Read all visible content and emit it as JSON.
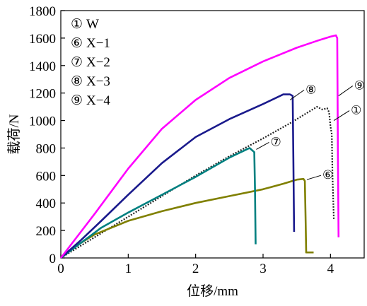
{
  "chart_data": {
    "type": "line",
    "title": "",
    "xlabel": "位移/mm",
    "ylabel": "载荷/N",
    "xlim": [
      0,
      4.5
    ],
    "ylim": [
      0,
      1800
    ],
    "xticks": [
      0,
      1,
      2,
      3,
      4
    ],
    "yticks": [
      0,
      200,
      400,
      600,
      800,
      1000,
      1200,
      1400,
      1600,
      1800
    ],
    "grid": false,
    "legend_position": "top-left",
    "legend": [
      {
        "marker": "①",
        "label": "W"
      },
      {
        "marker": "⑥",
        "label": "X−1"
      },
      {
        "marker": "⑦",
        "label": "X−2"
      },
      {
        "marker": "⑧",
        "label": "X−3"
      },
      {
        "marker": "⑨",
        "label": "X−4"
      }
    ],
    "series": [
      {
        "marker": "①",
        "color": "#222222",
        "dashed": true,
        "callout_at": [
          4.05,
          1000
        ],
        "points": [
          [
            0,
            0
          ],
          [
            0.5,
            150
          ],
          [
            1,
            300
          ],
          [
            1.5,
            450
          ],
          [
            2,
            600
          ],
          [
            2.5,
            740
          ],
          [
            3,
            870
          ],
          [
            3.4,
            980
          ],
          [
            3.6,
            1040
          ],
          [
            3.8,
            1100
          ],
          [
            3.88,
            1080
          ],
          [
            3.95,
            1090
          ],
          [
            3.98,
            1060
          ],
          [
            4.0,
            960
          ],
          [
            4.02,
            900
          ],
          [
            4.03,
            600
          ],
          [
            4.05,
            280
          ]
        ]
      },
      {
        "marker": "⑥",
        "color": "#808000",
        "dashed": false,
        "callout_at": [
          3.65,
          570
        ],
        "points": [
          [
            0,
            0
          ],
          [
            0.2,
            80
          ],
          [
            0.5,
            170
          ],
          [
            1,
            270
          ],
          [
            1.5,
            340
          ],
          [
            2,
            400
          ],
          [
            2.5,
            450
          ],
          [
            3,
            500
          ],
          [
            3.3,
            540
          ],
          [
            3.5,
            570
          ],
          [
            3.6,
            575
          ],
          [
            3.62,
            560
          ],
          [
            3.63,
            300
          ],
          [
            3.64,
            40
          ],
          [
            3.75,
            40
          ]
        ]
      },
      {
        "marker": "⑦",
        "color": "#008080",
        "dashed": false,
        "callout_at": [
          2.9,
          790
        ],
        "points": [
          [
            0,
            0
          ],
          [
            0.3,
            110
          ],
          [
            0.6,
            220
          ],
          [
            1,
            330
          ],
          [
            1.5,
            460
          ],
          [
            2,
            590
          ],
          [
            2.5,
            730
          ],
          [
            2.8,
            800
          ],
          [
            2.87,
            770
          ],
          [
            2.88,
            500
          ],
          [
            2.89,
            100
          ]
        ]
      },
      {
        "marker": "⑧",
        "color": "#1a1a8c",
        "dashed": false,
        "callout_at": [
          3.4,
          1150
        ],
        "points": [
          [
            0,
            0
          ],
          [
            0.3,
            130
          ],
          [
            0.6,
            270
          ],
          [
            1,
            460
          ],
          [
            1.5,
            690
          ],
          [
            2,
            880
          ],
          [
            2.5,
            1010
          ],
          [
            3,
            1120
          ],
          [
            3.3,
            1190
          ],
          [
            3.4,
            1190
          ],
          [
            3.44,
            1180
          ],
          [
            3.45,
            700
          ],
          [
            3.46,
            190
          ]
        ]
      },
      {
        "marker": "⑨",
        "color": "#ff00ff",
        "dashed": false,
        "callout_at": [
          4.12,
          1180
        ],
        "points": [
          [
            0,
            0
          ],
          [
            0.5,
            320
          ],
          [
            1,
            650
          ],
          [
            1.5,
            940
          ],
          [
            2,
            1150
          ],
          [
            2.5,
            1310
          ],
          [
            3,
            1430
          ],
          [
            3.5,
            1530
          ],
          [
            3.8,
            1580
          ],
          [
            4,
            1610
          ],
          [
            4.08,
            1620
          ],
          [
            4.1,
            1600
          ],
          [
            4.11,
            800
          ],
          [
            4.12,
            150
          ]
        ]
      }
    ]
  }
}
